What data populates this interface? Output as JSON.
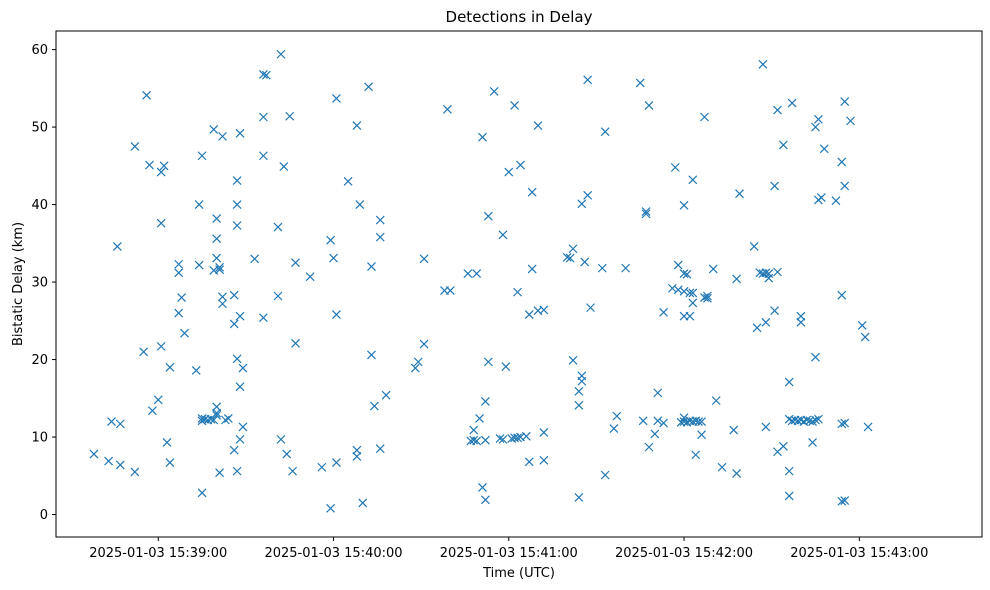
{
  "chart_data": {
    "type": "scatter",
    "title": "Detections in Delay",
    "xlabel": "Time (UTC)",
    "ylabel": "Bistatic Delay (km)",
    "marker": "x",
    "color": "#1f77b4",
    "grid": false,
    "xlim": [
      "2025-01-03 15:38:25",
      "2025-01-03 15:43:42"
    ],
    "ylim": [
      -2.9,
      62.4
    ],
    "x_ticks": [
      "2025-01-03 15:39:00",
      "2025-01-03 15:40:00",
      "2025-01-03 15:41:00",
      "2025-01-03 15:42:00",
      "2025-01-03 15:43:00"
    ],
    "y_ticks": [
      0,
      10,
      20,
      30,
      40,
      50,
      60
    ],
    "points": [
      {
        "x": "2025-01-03 15:38:38",
        "y": 7.8
      },
      {
        "x": "2025-01-03 15:38:43",
        "y": 6.9
      },
      {
        "x": "2025-01-03 15:38:44",
        "y": 12.0
      },
      {
        "x": "2025-01-03 15:38:46",
        "y": 34.6
      },
      {
        "x": "2025-01-03 15:38:47",
        "y": 11.7
      },
      {
        "x": "2025-01-03 15:38:47",
        "y": 6.4
      },
      {
        "x": "2025-01-03 15:38:52",
        "y": 47.5
      },
      {
        "x": "2025-01-03 15:38:52",
        "y": 5.5
      },
      {
        "x": "2025-01-03 15:38:55",
        "y": 21.0
      },
      {
        "x": "2025-01-03 15:38:56",
        "y": 54.1
      },
      {
        "x": "2025-01-03 15:38:57",
        "y": 45.1
      },
      {
        "x": "2025-01-03 15:38:58",
        "y": 13.4
      },
      {
        "x": "2025-01-03 15:39:00",
        "y": 14.8
      },
      {
        "x": "2025-01-03 15:39:01",
        "y": 44.2
      },
      {
        "x": "2025-01-03 15:39:01",
        "y": 37.6
      },
      {
        "x": "2025-01-03 15:39:01",
        "y": 21.7
      },
      {
        "x": "2025-01-03 15:39:02",
        "y": 45.0
      },
      {
        "x": "2025-01-03 15:39:03",
        "y": 9.3
      },
      {
        "x": "2025-01-03 15:39:04",
        "y": 19.0
      },
      {
        "x": "2025-01-03 15:39:04",
        "y": 6.7
      },
      {
        "x": "2025-01-03 15:39:07",
        "y": 32.3
      },
      {
        "x": "2025-01-03 15:39:07",
        "y": 31.2
      },
      {
        "x": "2025-01-03 15:39:07",
        "y": 26.0
      },
      {
        "x": "2025-01-03 15:39:08",
        "y": 28.0
      },
      {
        "x": "2025-01-03 15:39:09",
        "y": 23.4
      },
      {
        "x": "2025-01-03 15:39:13",
        "y": 18.6
      },
      {
        "x": "2025-01-03 15:39:14",
        "y": 32.2
      },
      {
        "x": "2025-01-03 15:39:14",
        "y": 40.0
      },
      {
        "x": "2025-01-03 15:39:15",
        "y": 46.3
      },
      {
        "x": "2025-01-03 15:39:15",
        "y": 12.4
      },
      {
        "x": "2025-01-03 15:39:15",
        "y": 12.1
      },
      {
        "x": "2025-01-03 15:39:16",
        "y": 12.3
      },
      {
        "x": "2025-01-03 15:39:17",
        "y": 12.2
      },
      {
        "x": "2025-01-03 15:39:18",
        "y": 12.3
      },
      {
        "x": "2025-01-03 15:39:19",
        "y": 12.2
      },
      {
        "x": "2025-01-03 15:39:15",
        "y": 2.8
      },
      {
        "x": "2025-01-03 15:39:19",
        "y": 31.5
      },
      {
        "x": "2025-01-03 15:39:19",
        "y": 49.7
      },
      {
        "x": "2025-01-03 15:39:20",
        "y": 33.1
      },
      {
        "x": "2025-01-03 15:39:20",
        "y": 13.1
      },
      {
        "x": "2025-01-03 15:39:20",
        "y": 13.9
      },
      {
        "x": "2025-01-03 15:39:20",
        "y": 12.8
      },
      {
        "x": "2025-01-03 15:39:20",
        "y": 38.2
      },
      {
        "x": "2025-01-03 15:39:20",
        "y": 35.6
      },
      {
        "x": "2025-01-03 15:39:21",
        "y": 31.6
      },
      {
        "x": "2025-01-03 15:39:21",
        "y": 5.4
      },
      {
        "x": "2025-01-03 15:39:21",
        "y": 31.9
      },
      {
        "x": "2025-01-03 15:39:22",
        "y": 48.8
      },
      {
        "x": "2025-01-03 15:39:22",
        "y": 28.1
      },
      {
        "x": "2025-01-03 15:39:22",
        "y": 27.2
      },
      {
        "x": "2025-01-03 15:39:23",
        "y": 12.2
      },
      {
        "x": "2025-01-03 15:39:24",
        "y": 12.4
      },
      {
        "x": "2025-01-03 15:39:26",
        "y": 24.6
      },
      {
        "x": "2025-01-03 15:39:26",
        "y": 28.3
      },
      {
        "x": "2025-01-03 15:39:26",
        "y": 8.3
      },
      {
        "x": "2025-01-03 15:39:27",
        "y": 43.1
      },
      {
        "x": "2025-01-03 15:39:27",
        "y": 40.0
      },
      {
        "x": "2025-01-03 15:39:27",
        "y": 37.3
      },
      {
        "x": "2025-01-03 15:39:27",
        "y": 20.1
      },
      {
        "x": "2025-01-03 15:39:27",
        "y": 5.6
      },
      {
        "x": "2025-01-03 15:39:28",
        "y": 49.2
      },
      {
        "x": "2025-01-03 15:39:28",
        "y": 25.6
      },
      {
        "x": "2025-01-03 15:39:28",
        "y": 16.5
      },
      {
        "x": "2025-01-03 15:39:28",
        "y": 9.7
      },
      {
        "x": "2025-01-03 15:39:29",
        "y": 18.9
      },
      {
        "x": "2025-01-03 15:39:29",
        "y": 11.3
      },
      {
        "x": "2025-01-03 15:39:33",
        "y": 33.0
      },
      {
        "x": "2025-01-03 15:39:36",
        "y": 56.8
      },
      {
        "x": "2025-01-03 15:39:37",
        "y": 56.7
      },
      {
        "x": "2025-01-03 15:39:36",
        "y": 51.3
      },
      {
        "x": "2025-01-03 15:39:36",
        "y": 46.3
      },
      {
        "x": "2025-01-03 15:39:36",
        "y": 25.4
      },
      {
        "x": "2025-01-03 15:39:42",
        "y": 59.4
      },
      {
        "x": "2025-01-03 15:39:41",
        "y": 37.1
      },
      {
        "x": "2025-01-03 15:39:41",
        "y": 28.2
      },
      {
        "x": "2025-01-03 15:39:42",
        "y": 9.7
      },
      {
        "x": "2025-01-03 15:39:43",
        "y": 44.9
      },
      {
        "x": "2025-01-03 15:39:44",
        "y": 7.8
      },
      {
        "x": "2025-01-03 15:39:45",
        "y": 51.4
      },
      {
        "x": "2025-01-03 15:39:46",
        "y": 5.6
      },
      {
        "x": "2025-01-03 15:39:47",
        "y": 32.5
      },
      {
        "x": "2025-01-03 15:39:47",
        "y": 22.1
      },
      {
        "x": "2025-01-03 15:39:52",
        "y": 30.7
      },
      {
        "x": "2025-01-03 15:39:56",
        "y": 6.1
      },
      {
        "x": "2025-01-03 15:39:59",
        "y": 35.4
      },
      {
        "x": "2025-01-03 15:40:00",
        "y": 33.1
      },
      {
        "x": "2025-01-03 15:39:59",
        "y": 0.8
      },
      {
        "x": "2025-01-03 15:40:01",
        "y": 53.7
      },
      {
        "x": "2025-01-03 15:40:01",
        "y": 25.8
      },
      {
        "x": "2025-01-03 15:40:01",
        "y": 6.7
      },
      {
        "x": "2025-01-03 15:40:05",
        "y": 43.0
      },
      {
        "x": "2025-01-03 15:40:08",
        "y": 50.2
      },
      {
        "x": "2025-01-03 15:40:08",
        "y": 7.5
      },
      {
        "x": "2025-01-03 15:40:08",
        "y": 8.3
      },
      {
        "x": "2025-01-03 15:40:09",
        "y": 40.0
      },
      {
        "x": "2025-01-03 15:40:10",
        "y": 1.5
      },
      {
        "x": "2025-01-03 15:40:12",
        "y": 55.2
      },
      {
        "x": "2025-01-03 15:40:13",
        "y": 32.0
      },
      {
        "x": "2025-01-03 15:40:13",
        "y": 20.6
      },
      {
        "x": "2025-01-03 15:40:14",
        "y": 14.0
      },
      {
        "x": "2025-01-03 15:40:16",
        "y": 38.0
      },
      {
        "x": "2025-01-03 15:40:16",
        "y": 35.8
      },
      {
        "x": "2025-01-03 15:40:16",
        "y": 8.5
      },
      {
        "x": "2025-01-03 15:40:18",
        "y": 15.4
      },
      {
        "x": "2025-01-03 15:40:28",
        "y": 18.9
      },
      {
        "x": "2025-01-03 15:40:29",
        "y": 19.7
      },
      {
        "x": "2025-01-03 15:40:31",
        "y": 33.0
      },
      {
        "x": "2025-01-03 15:40:31",
        "y": 22.0
      },
      {
        "x": "2025-01-03 15:40:38",
        "y": 28.9
      },
      {
        "x": "2025-01-03 15:40:39",
        "y": 52.3
      },
      {
        "x": "2025-01-03 15:40:40",
        "y": 28.9
      },
      {
        "x": "2025-01-03 15:40:46",
        "y": 31.1
      },
      {
        "x": "2025-01-03 15:40:49",
        "y": 31.1
      },
      {
        "x": "2025-01-03 15:40:47",
        "y": 9.5
      },
      {
        "x": "2025-01-03 15:40:48",
        "y": 9.6
      },
      {
        "x": "2025-01-03 15:40:49",
        "y": 9.5
      },
      {
        "x": "2025-01-03 15:40:48",
        "y": 10.9
      },
      {
        "x": "2025-01-03 15:40:50",
        "y": 12.4
      },
      {
        "x": "2025-01-03 15:40:51",
        "y": 3.5
      },
      {
        "x": "2025-01-03 15:40:51",
        "y": 48.7
      },
      {
        "x": "2025-01-03 15:40:52",
        "y": 14.6
      },
      {
        "x": "2025-01-03 15:40:52",
        "y": 9.6
      },
      {
        "x": "2025-01-03 15:40:52",
        "y": 1.9
      },
      {
        "x": "2025-01-03 15:40:53",
        "y": 38.5
      },
      {
        "x": "2025-01-03 15:40:53",
        "y": 19.7
      },
      {
        "x": "2025-01-03 15:40:55",
        "y": 54.6
      },
      {
        "x": "2025-01-03 15:40:57",
        "y": 9.8
      },
      {
        "x": "2025-01-03 15:40:58",
        "y": 9.7
      },
      {
        "x": "2025-01-03 15:40:58",
        "y": 36.1
      },
      {
        "x": "2025-01-03 15:40:59",
        "y": 19.1
      },
      {
        "x": "2025-01-03 15:41:00",
        "y": 44.2
      },
      {
        "x": "2025-01-03 15:41:01",
        "y": 9.8
      },
      {
        "x": "2025-01-03 15:41:02",
        "y": 52.8
      },
      {
        "x": "2025-01-03 15:41:02",
        "y": 9.9
      },
      {
        "x": "2025-01-03 15:41:03",
        "y": 28.7
      },
      {
        "x": "2025-01-03 15:41:03",
        "y": 9.9
      },
      {
        "x": "2025-01-03 15:41:04",
        "y": 45.1
      },
      {
        "x": "2025-01-03 15:41:04",
        "y": 10.0
      },
      {
        "x": "2025-01-03 15:41:06",
        "y": 10.1
      },
      {
        "x": "2025-01-03 15:41:07",
        "y": 25.8
      },
      {
        "x": "2025-01-03 15:41:07",
        "y": 6.8
      },
      {
        "x": "2025-01-03 15:41:08",
        "y": 41.6
      },
      {
        "x": "2025-01-03 15:41:08",
        "y": 31.7
      },
      {
        "x": "2025-01-03 15:41:10",
        "y": 50.2
      },
      {
        "x": "2025-01-03 15:41:10",
        "y": 26.3
      },
      {
        "x": "2025-01-03 15:41:12",
        "y": 26.4
      },
      {
        "x": "2025-01-03 15:41:12",
        "y": 10.6
      },
      {
        "x": "2025-01-03 15:41:12",
        "y": 7.0
      },
      {
        "x": "2025-01-03 15:41:20",
        "y": 33.2
      },
      {
        "x": "2025-01-03 15:41:21",
        "y": 33.1
      },
      {
        "x": "2025-01-03 15:41:22",
        "y": 34.3
      },
      {
        "x": "2025-01-03 15:41:22",
        "y": 19.9
      },
      {
        "x": "2025-01-03 15:41:24",
        "y": 15.9
      },
      {
        "x": "2025-01-03 15:41:25",
        "y": 17.2
      },
      {
        "x": "2025-01-03 15:41:25",
        "y": 17.9
      },
      {
        "x": "2025-01-03 15:41:24",
        "y": 14.1
      },
      {
        "x": "2025-01-03 15:41:24",
        "y": 2.2
      },
      {
        "x": "2025-01-03 15:41:25",
        "y": 40.1
      },
      {
        "x": "2025-01-03 15:41:26",
        "y": 32.6
      },
      {
        "x": "2025-01-03 15:41:27",
        "y": 41.2
      },
      {
        "x": "2025-01-03 15:41:27",
        "y": 56.1
      },
      {
        "x": "2025-01-03 15:41:28",
        "y": 26.7
      },
      {
        "x": "2025-01-03 15:41:32",
        "y": 31.8
      },
      {
        "x": "2025-01-03 15:41:33",
        "y": 49.4
      },
      {
        "x": "2025-01-03 15:41:33",
        "y": 5.1
      },
      {
        "x": "2025-01-03 15:41:36",
        "y": 11.1
      },
      {
        "x": "2025-01-03 15:41:37",
        "y": 12.7
      },
      {
        "x": "2025-01-03 15:41:40",
        "y": 31.8
      },
      {
        "x": "2025-01-03 15:41:45",
        "y": 55.7
      },
      {
        "x": "2025-01-03 15:41:46",
        "y": 12.1
      },
      {
        "x": "2025-01-03 15:41:47",
        "y": 39.1
      },
      {
        "x": "2025-01-03 15:41:47",
        "y": 38.8
      },
      {
        "x": "2025-01-03 15:41:48",
        "y": 52.8
      },
      {
        "x": "2025-01-03 15:41:48",
        "y": 8.7
      },
      {
        "x": "2025-01-03 15:41:50",
        "y": 10.4
      },
      {
        "x": "2025-01-03 15:41:51",
        "y": 15.7
      },
      {
        "x": "2025-01-03 15:41:51",
        "y": 12.1
      },
      {
        "x": "2025-01-03 15:41:53",
        "y": 11.8
      },
      {
        "x": "2025-01-03 15:41:53",
        "y": 26.1
      },
      {
        "x": "2025-01-03 15:41:56",
        "y": 29.2
      },
      {
        "x": "2025-01-03 15:41:57",
        "y": 44.8
      },
      {
        "x": "2025-01-03 15:41:58",
        "y": 32.2
      },
      {
        "x": "2025-01-03 15:41:58",
        "y": 29.0
      },
      {
        "x": "2025-01-03 15:41:59",
        "y": 11.9
      },
      {
        "x": "2025-01-03 15:42:00",
        "y": 31.1
      },
      {
        "x": "2025-01-03 15:42:00",
        "y": 28.8
      },
      {
        "x": "2025-01-03 15:42:00",
        "y": 25.6
      },
      {
        "x": "2025-01-03 15:42:00",
        "y": 12.5
      },
      {
        "x": "2025-01-03 15:42:00",
        "y": 12.0
      },
      {
        "x": "2025-01-03 15:42:00",
        "y": 39.9
      },
      {
        "x": "2025-01-03 15:42:01",
        "y": 31.0
      },
      {
        "x": "2025-01-03 15:42:01",
        "y": 11.9
      },
      {
        "x": "2025-01-03 15:42:02",
        "y": 25.6
      },
      {
        "x": "2025-01-03 15:42:02",
        "y": 12.1
      },
      {
        "x": "2025-01-03 15:42:02",
        "y": 28.6
      },
      {
        "x": "2025-01-03 15:42:03",
        "y": 43.2
      },
      {
        "x": "2025-01-03 15:42:03",
        "y": 28.6
      },
      {
        "x": "2025-01-03 15:42:03",
        "y": 27.3
      },
      {
        "x": "2025-01-03 15:42:03",
        "y": 12.0
      },
      {
        "x": "2025-01-03 15:42:04",
        "y": 12.1
      },
      {
        "x": "2025-01-03 15:42:04",
        "y": 7.7
      },
      {
        "x": "2025-01-03 15:42:05",
        "y": 12.0
      },
      {
        "x": "2025-01-03 15:42:06",
        "y": 10.3
      },
      {
        "x": "2025-01-03 15:42:06",
        "y": 12.0
      },
      {
        "x": "2025-01-03 15:42:07",
        "y": 51.3
      },
      {
        "x": "2025-01-03 15:42:07",
        "y": 28.0
      },
      {
        "x": "2025-01-03 15:42:08",
        "y": 28.2
      },
      {
        "x": "2025-01-03 15:42:08",
        "y": 27.9
      },
      {
        "x": "2025-01-03 15:42:10",
        "y": 31.7
      },
      {
        "x": "2025-01-03 15:42:11",
        "y": 14.7
      },
      {
        "x": "2025-01-03 15:42:13",
        "y": 6.1
      },
      {
        "x": "2025-01-03 15:42:18",
        "y": 30.4
      },
      {
        "x": "2025-01-03 15:42:17",
        "y": 10.9
      },
      {
        "x": "2025-01-03 15:42:18",
        "y": 5.3
      },
      {
        "x": "2025-01-03 15:42:19",
        "y": 41.4
      },
      {
        "x": "2025-01-03 15:42:24",
        "y": 34.6
      },
      {
        "x": "2025-01-03 15:42:25",
        "y": 24.1
      },
      {
        "x": "2025-01-03 15:42:26",
        "y": 31.2
      },
      {
        "x": "2025-01-03 15:42:27",
        "y": 58.1
      },
      {
        "x": "2025-01-03 15:42:27",
        "y": 31.1
      },
      {
        "x": "2025-01-03 15:42:28",
        "y": 31.2
      },
      {
        "x": "2025-01-03 15:42:28",
        "y": 24.8
      },
      {
        "x": "2025-01-03 15:42:28",
        "y": 11.3
      },
      {
        "x": "2025-01-03 15:42:29",
        "y": 31.1
      },
      {
        "x": "2025-01-03 15:42:29",
        "y": 30.5
      },
      {
        "x": "2025-01-03 15:42:31",
        "y": 42.4
      },
      {
        "x": "2025-01-03 15:42:31",
        "y": 26.3
      },
      {
        "x": "2025-01-03 15:42:32",
        "y": 52.2
      },
      {
        "x": "2025-01-03 15:42:32",
        "y": 31.3
      },
      {
        "x": "2025-01-03 15:42:32",
        "y": 8.1
      },
      {
        "x": "2025-01-03 15:42:34",
        "y": 47.7
      },
      {
        "x": "2025-01-03 15:42:34",
        "y": 8.8
      },
      {
        "x": "2025-01-03 15:42:36",
        "y": 17.1
      },
      {
        "x": "2025-01-03 15:42:36",
        "y": 5.6
      },
      {
        "x": "2025-01-03 15:42:36",
        "y": 2.4
      },
      {
        "x": "2025-01-03 15:42:37",
        "y": 53.1
      },
      {
        "x": "2025-01-03 15:42:36",
        "y": 12.3
      },
      {
        "x": "2025-01-03 15:42:37",
        "y": 12.1
      },
      {
        "x": "2025-01-03 15:42:38",
        "y": 12.2
      },
      {
        "x": "2025-01-03 15:42:39",
        "y": 12.1
      },
      {
        "x": "2025-01-03 15:42:40",
        "y": 12.2
      },
      {
        "x": "2025-01-03 15:42:40",
        "y": 25.6
      },
      {
        "x": "2025-01-03 15:42:40",
        "y": 24.8
      },
      {
        "x": "2025-01-03 15:42:41",
        "y": 12.0
      },
      {
        "x": "2025-01-03 15:42:42",
        "y": 12.2
      },
      {
        "x": "2025-01-03 15:42:43",
        "y": 12.1
      },
      {
        "x": "2025-01-03 15:42:44",
        "y": 12.0
      },
      {
        "x": "2025-01-03 15:42:44",
        "y": 9.3
      },
      {
        "x": "2025-01-03 15:42:45",
        "y": 12.2
      },
      {
        "x": "2025-01-03 15:42:45",
        "y": 50.0
      },
      {
        "x": "2025-01-03 15:42:46",
        "y": 51.0
      },
      {
        "x": "2025-01-03 15:42:45",
        "y": 20.3
      },
      {
        "x": "2025-01-03 15:42:46",
        "y": 12.3
      },
      {
        "x": "2025-01-03 15:42:46",
        "y": 40.6
      },
      {
        "x": "2025-01-03 15:42:47",
        "y": 40.9
      },
      {
        "x": "2025-01-03 15:42:48",
        "y": 47.2
      },
      {
        "x": "2025-01-03 15:42:52",
        "y": 40.5
      },
      {
        "x": "2025-01-03 15:42:54",
        "y": 45.5
      },
      {
        "x": "2025-01-03 15:42:54",
        "y": 28.3
      },
      {
        "x": "2025-01-03 15:42:54",
        "y": 11.7
      },
      {
        "x": "2025-01-03 15:42:55",
        "y": 11.8
      },
      {
        "x": "2025-01-03 15:42:54",
        "y": 1.7
      },
      {
        "x": "2025-01-03 15:42:55",
        "y": 1.8
      },
      {
        "x": "2025-01-03 15:42:55",
        "y": 53.3
      },
      {
        "x": "2025-01-03 15:42:55",
        "y": 42.4
      },
      {
        "x": "2025-01-03 15:42:57",
        "y": 50.8
      },
      {
        "x": "2025-01-03 15:43:01",
        "y": 24.4
      },
      {
        "x": "2025-01-03 15:43:02",
        "y": 22.9
      },
      {
        "x": "2025-01-03 15:43:03",
        "y": 11.3
      }
    ]
  }
}
